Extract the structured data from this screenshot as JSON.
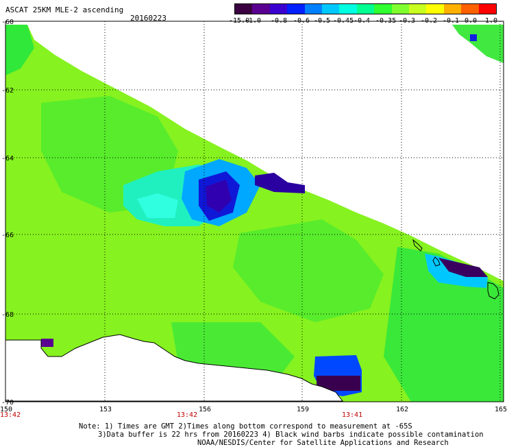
{
  "header": {
    "title": "ASCAT 25KM MLE-2 ascending",
    "date": "20160223"
  },
  "colorbar": {
    "colors": [
      "#3a0040",
      "#5a0090",
      "#3a00d0",
      "#0020ff",
      "#0080ff",
      "#00c8ff",
      "#00ffe0",
      "#00ff90",
      "#30ff30",
      "#80ff30",
      "#c8ff20",
      "#ffff00",
      "#ffb000",
      "#ff6000",
      "#ff0000"
    ],
    "tick_labels": [
      "-15.0",
      "-1.0",
      "-0.8",
      "-0.6",
      "-0.5",
      "-0.45",
      "-0.4",
      "-0.35",
      "-0.3",
      "-0.2",
      "-0.1",
      "0.0",
      "1.0"
    ]
  },
  "axes": {
    "lat_labels": [
      "-60",
      "-62",
      "-64",
      "-66",
      "-68",
      "-70"
    ],
    "lon_labels": [
      "150",
      "153",
      "156",
      "159",
      "162",
      "165"
    ],
    "time_labels": [
      "13:42",
      "13:42",
      "13:41"
    ]
  },
  "footer": {
    "line1": "Note: 1) Times are GMT 2)Times along bottom correspond to measurement at -65S",
    "line2": "3)Data buffer is 22 hrs from 20160223 4) Black wind barbs indicate possible contamination",
    "line3": "NOAA/NESDIS/Center for Satellite Applications and Research"
  },
  "map": {
    "base_color": "#86f21f",
    "swath_color_green": "#30e83a"
  }
}
